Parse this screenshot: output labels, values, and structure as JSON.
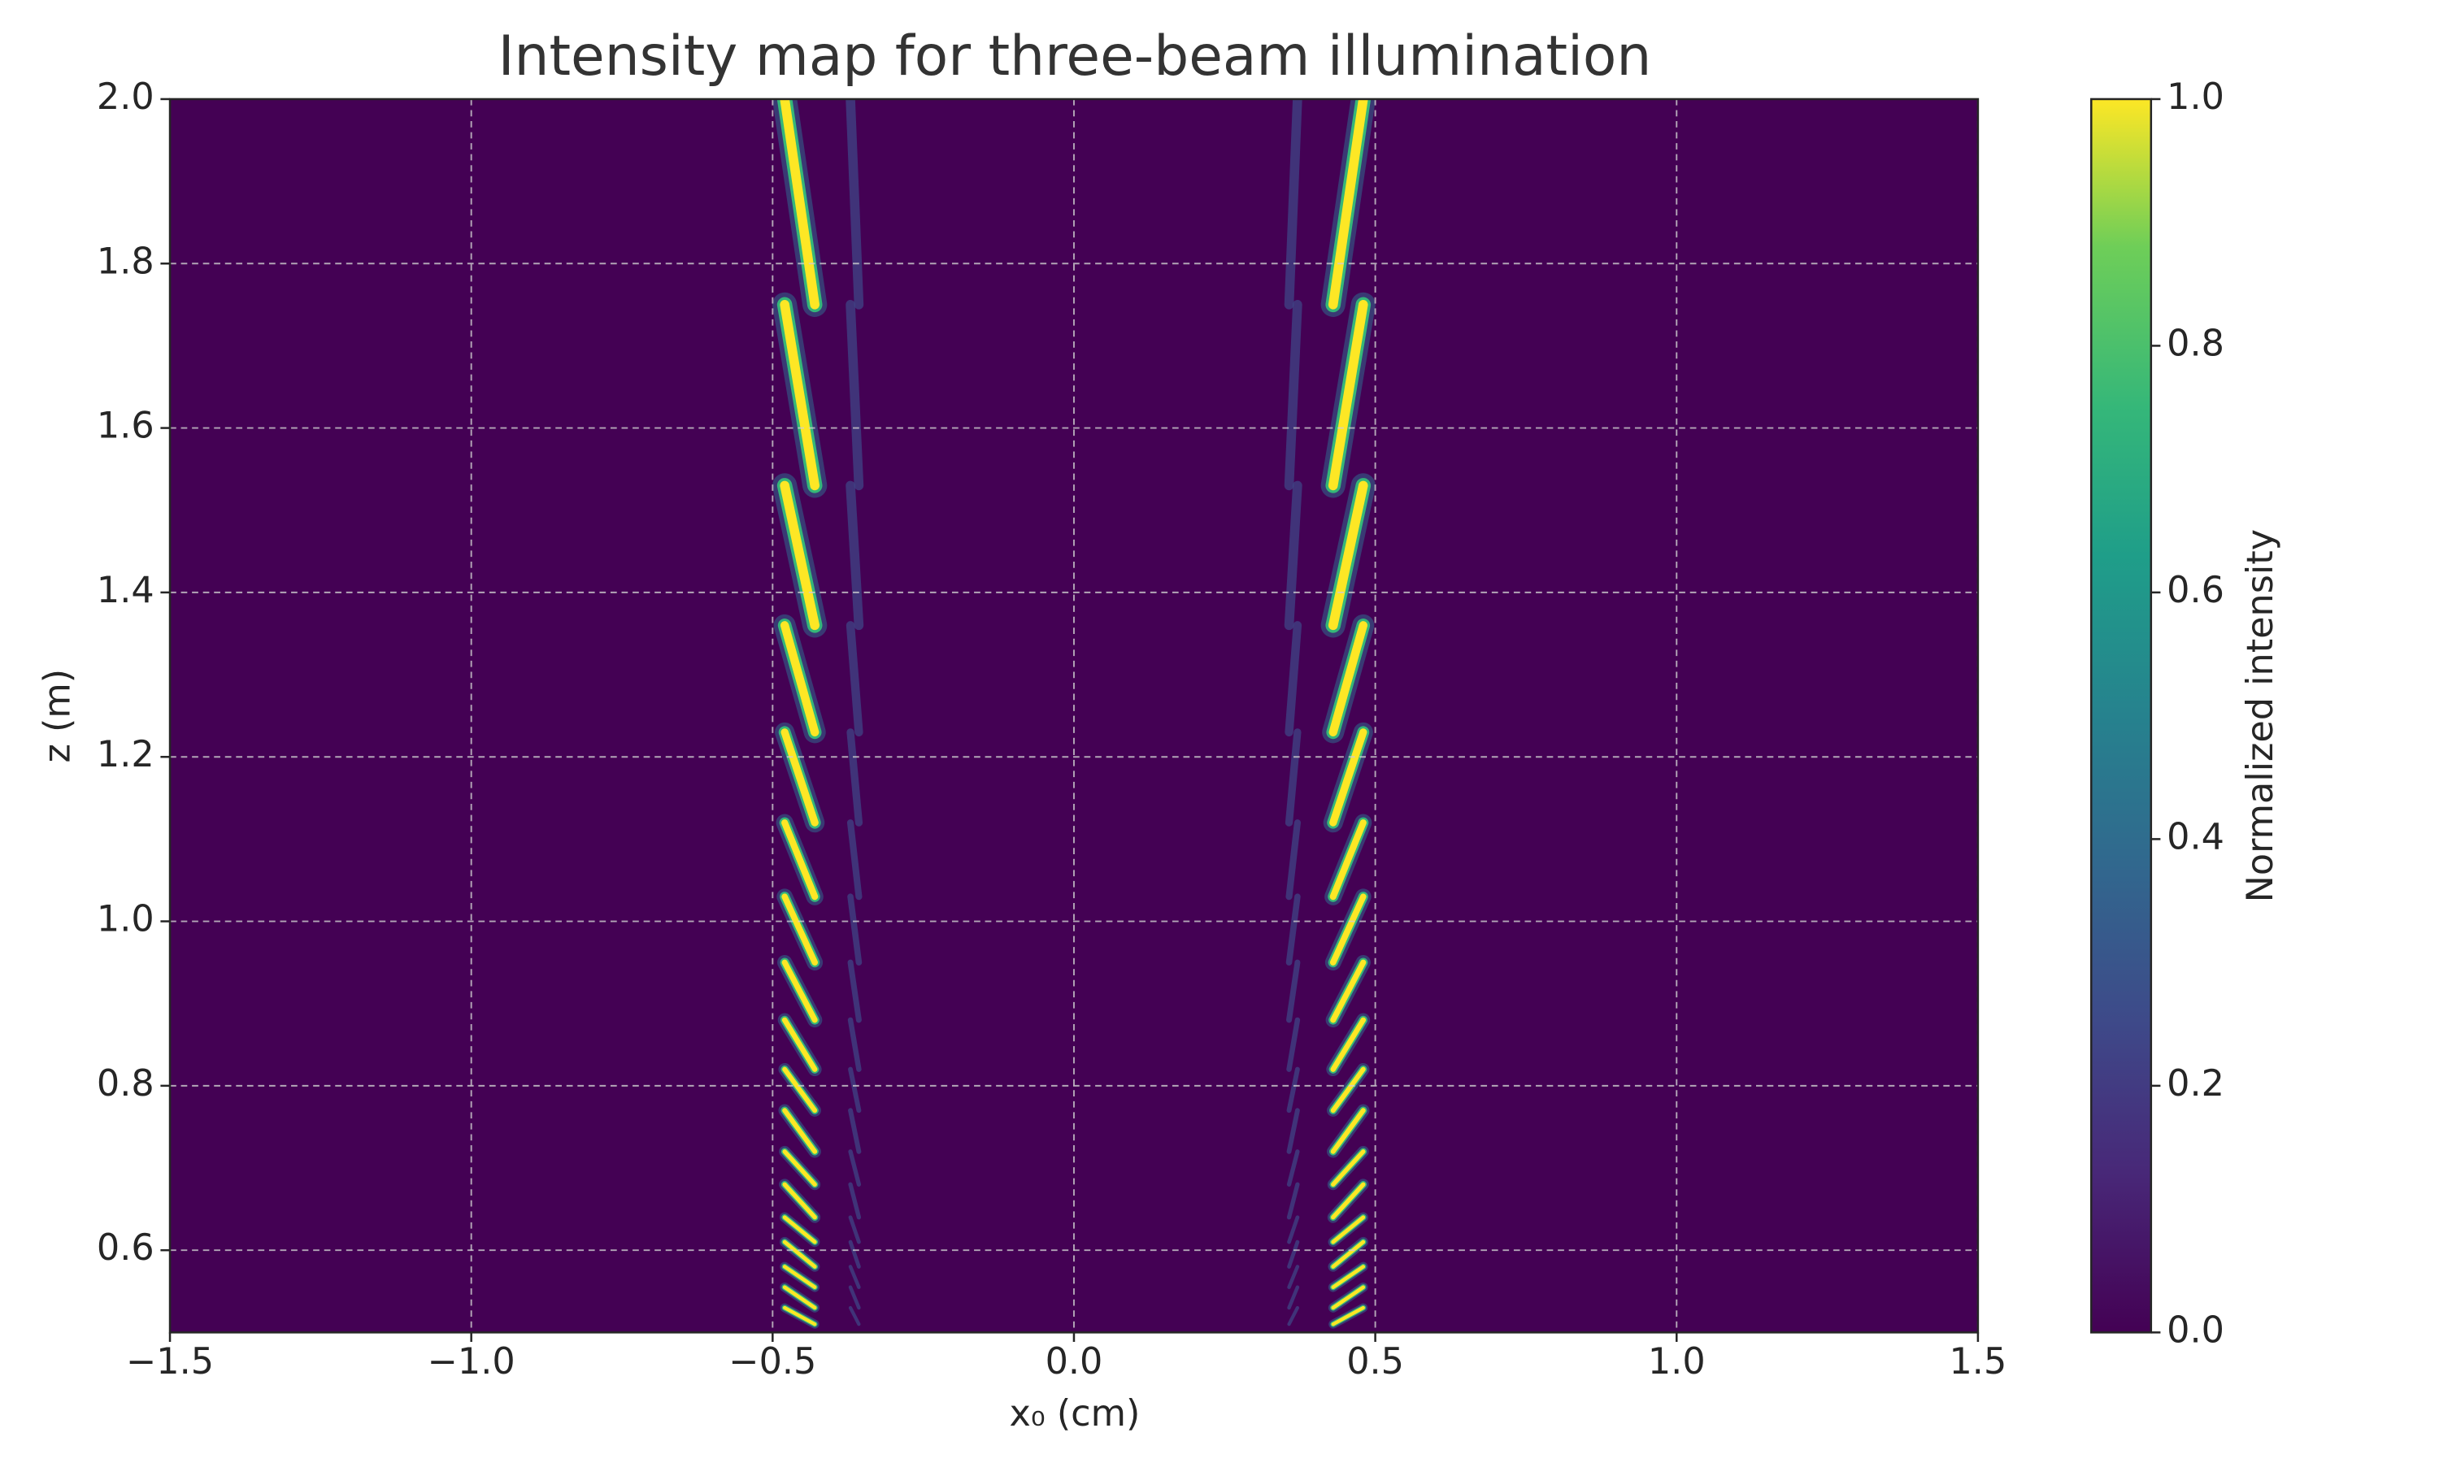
{
  "chart_data": {
    "type": "heatmap",
    "title": "Intensity map for three-beam illumination",
    "xlabel": "x₀ (cm)",
    "ylabel": "z (m)",
    "colorbar_label": "Normalized intensity",
    "colormap": "viridis",
    "background_color": "#440154",
    "grid": true,
    "xlim": [
      -1.5,
      1.5
    ],
    "ylim": [
      0.5,
      2.0
    ],
    "clim": [
      0,
      1
    ],
    "xticks": [
      {
        "value": -1.5,
        "label": "−1.5"
      },
      {
        "value": -1,
        "label": "−1.0"
      },
      {
        "value": -0.5,
        "label": "−0.5"
      },
      {
        "value": 0,
        "label": "0.0"
      },
      0.5,
      {
        "value": 1,
        "label": "1.0"
      },
      1.5
    ],
    "yticks": [
      0.6,
      0.8,
      {
        "value": 1,
        "label": "1.0"
      },
      1.2,
      1.4,
      1.6,
      1.8,
      {
        "value": 2,
        "label": "2.0"
      }
    ],
    "cticks": [
      {
        "value": 0,
        "label": "0.0"
      },
      0.2,
      0.4,
      0.6,
      0.8,
      {
        "value": 1,
        "label": "1.0"
      }
    ],
    "fringe_z": [
      2.0,
      1.75,
      1.53,
      1.36,
      1.23,
      1.12,
      1.03,
      0.95,
      0.88,
      0.82,
      0.77,
      0.72,
      0.68,
      0.64,
      0.61,
      0.58,
      0.555,
      0.53,
      0.51
    ],
    "beams": [
      {
        "x_top": -0.48,
        "x_bottom": -0.43
      },
      {
        "x_top": 0.48,
        "x_bottom": 0.43
      }
    ]
  }
}
